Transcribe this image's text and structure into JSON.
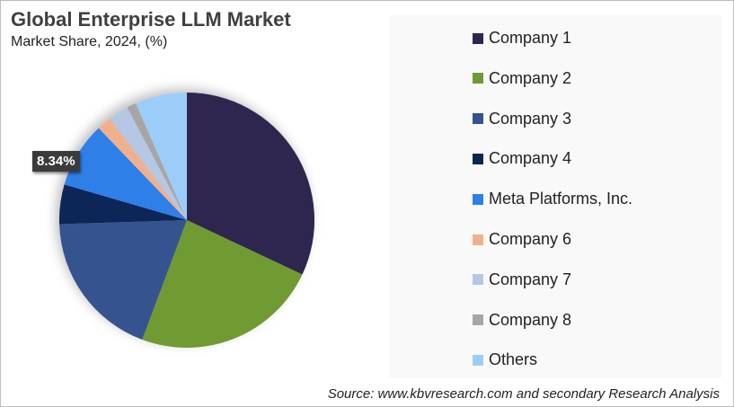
{
  "title": "Global Enterprise LLM Market",
  "subtitle": "Market Share, 2024, (%)",
  "source": "Source: www.kbvresearch.com and secondary Research Analysis",
  "data_label": "8.34%",
  "legend": [
    {
      "label": "Company 1",
      "color": "#2e2650"
    },
    {
      "label": "Company 2",
      "color": "#6f9a33"
    },
    {
      "label": "Company 3",
      "color": "#34538f"
    },
    {
      "label": "Company 4",
      "color": "#0b2559"
    },
    {
      "label": "Meta Platforms, Inc.",
      "color": "#2f7fe8"
    },
    {
      "label": "Company 6",
      "color": "#f0b08c"
    },
    {
      "label": "Company 7",
      "color": "#b5c7e4"
    },
    {
      "label": "Company 8",
      "color": "#a6a6a6"
    },
    {
      "label": "Others",
      "color": "#9ccdf8"
    }
  ],
  "chart_data": {
    "type": "pie",
    "title": "Global Enterprise LLM Market",
    "subtitle": "Market Share, 2024, (%)",
    "categories": [
      "Company 1",
      "Company 2",
      "Company 3",
      "Company 4",
      "Meta Platforms, Inc.",
      "Company 6",
      "Company 7",
      "Company 8",
      "Others"
    ],
    "values": [
      32.0,
      23.7,
      18.8,
      5.0,
      8.34,
      1.8,
      2.6,
      1.2,
      6.56
    ],
    "data_labels": {
      "Meta Platforms, Inc.": "8.34%"
    },
    "legend_position": "right"
  }
}
